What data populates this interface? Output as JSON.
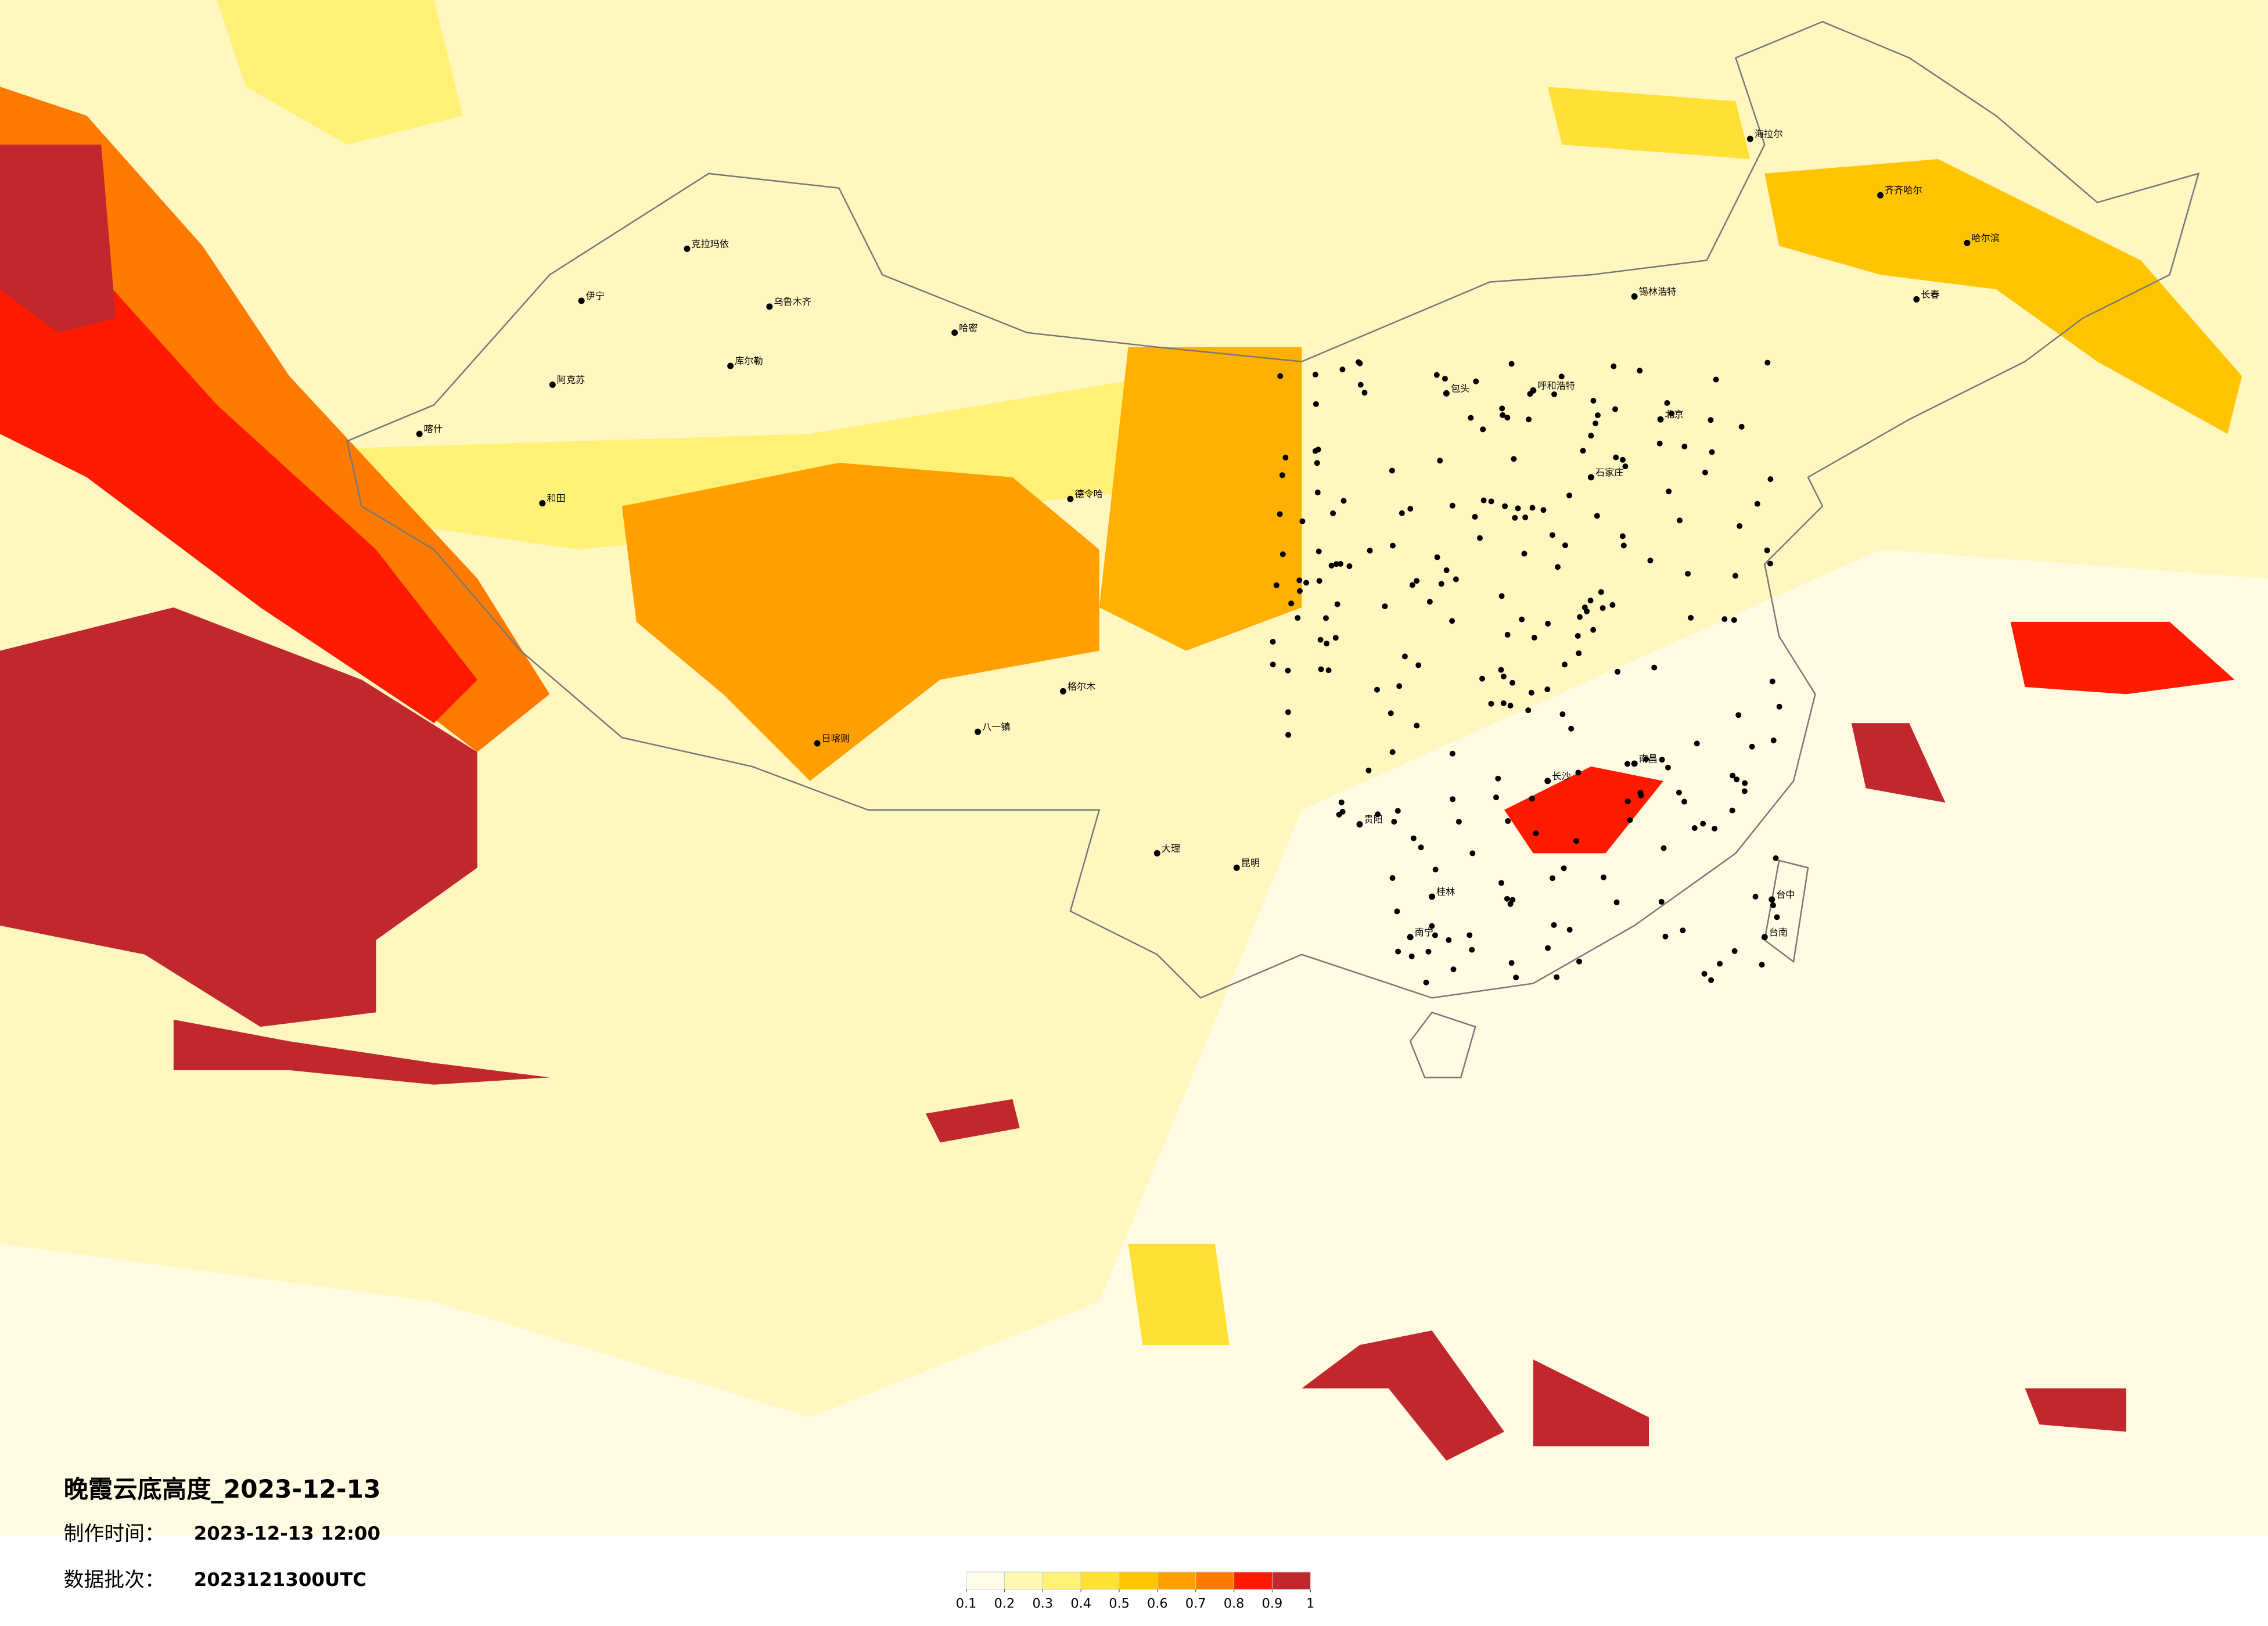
{
  "title": "晚霞云底高度_2023-12-13",
  "made_label": "制作时间：",
  "made_time": "2023-12-13 12:00",
  "batch_label": "数据批次：",
  "batch": "2023121300UTC",
  "colorbar": {
    "colors": [
      "#fffde8",
      "#fff8b0",
      "#fff176",
      "#ffe135",
      "#ffc400",
      "#ffa000",
      "#ff7a00",
      "#ff1a00",
      "#c0282d"
    ],
    "ticks": [
      0.1,
      0.2,
      0.3,
      0.4,
      0.5,
      0.6,
      0.7,
      0.8,
      0.9,
      1
    ]
  },
  "cities": [
    "克拉玛依",
    "伊宁",
    "乌鲁木齐",
    "库尔勒",
    "阿克苏",
    "喀什",
    "和田",
    "哈密",
    "德令哈",
    "格尔木",
    "八一镇",
    "日喀则",
    "海拉尔",
    "齐齐哈尔",
    "哈尔滨",
    "长春",
    "呼和浩特",
    "包头",
    "石家庄",
    "北京",
    "长沙",
    "南昌",
    "贵阳",
    "昆明",
    "南宁",
    "台中",
    "台南",
    "锡林浩特",
    "大理",
    "桂林"
  ]
}
